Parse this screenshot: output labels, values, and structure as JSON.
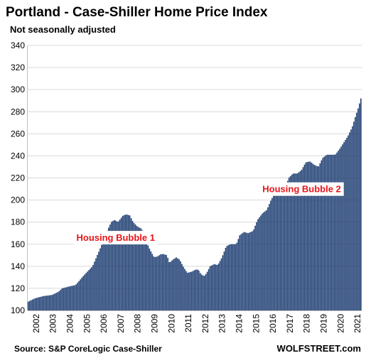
{
  "chart_data": {
    "type": "bar",
    "title": "Portland - Case-Shiller Home Price Index",
    "subtitle": "Not seasonally adjusted",
    "ylim": [
      100,
      340
    ],
    "yticks": [
      100,
      120,
      140,
      160,
      180,
      200,
      220,
      240,
      260,
      280,
      300,
      320,
      340
    ],
    "xlim": [
      2002.0,
      2021.6667
    ],
    "xticks": [
      "2002",
      "2003",
      "2004",
      "2005",
      "2006",
      "2007",
      "2008",
      "2009",
      "2010",
      "2011",
      "2012",
      "2013",
      "2014",
      "2015",
      "2016",
      "2017",
      "2018",
      "2019",
      "2020",
      "2021"
    ],
    "grid": "horizontal",
    "bar_color": "#1f3f73",
    "frequency": "monthly",
    "series_knots": [
      [
        2002.0,
        108
      ],
      [
        2002.4,
        111
      ],
      [
        2002.9,
        113
      ],
      [
        2003.4,
        114
      ],
      [
        2003.8,
        117
      ],
      [
        2004.0,
        120
      ],
      [
        2004.5,
        122
      ],
      [
        2004.8,
        123
      ],
      [
        2005.3,
        132
      ],
      [
        2005.8,
        140
      ],
      [
        2006.3,
        158
      ],
      [
        2006.6,
        170
      ],
      [
        2006.9,
        180
      ],
      [
        2007.1,
        182
      ],
      [
        2007.3,
        180
      ],
      [
        2007.6,
        186
      ],
      [
        2007.8,
        187
      ],
      [
        2008.0,
        186
      ],
      [
        2008.2,
        180
      ],
      [
        2008.45,
        176
      ],
      [
        2008.7,
        174
      ],
      [
        2008.9,
        168
      ],
      [
        2009.1,
        158
      ],
      [
        2009.3,
        152
      ],
      [
        2009.45,
        148
      ],
      [
        2009.65,
        149
      ],
      [
        2009.85,
        151
      ],
      [
        2010.0,
        151
      ],
      [
        2010.2,
        150
      ],
      [
        2010.35,
        143
      ],
      [
        2010.55,
        146
      ],
      [
        2010.75,
        148
      ],
      [
        2010.95,
        146
      ],
      [
        2011.15,
        140
      ],
      [
        2011.4,
        134
      ],
      [
        2011.65,
        135
      ],
      [
        2011.9,
        137
      ],
      [
        2012.05,
        137
      ],
      [
        2012.2,
        133
      ],
      [
        2012.4,
        131
      ],
      [
        2012.55,
        134
      ],
      [
        2012.75,
        140
      ],
      [
        2013.0,
        142
      ],
      [
        2013.2,
        141
      ],
      [
        2013.45,
        148
      ],
      [
        2013.7,
        158
      ],
      [
        2013.95,
        160
      ],
      [
        2014.3,
        160
      ],
      [
        2014.5,
        168
      ],
      [
        2014.75,
        171
      ],
      [
        2015.0,
        170
      ],
      [
        2015.3,
        172
      ],
      [
        2015.55,
        182
      ],
      [
        2015.85,
        188
      ],
      [
        2016.1,
        191
      ],
      [
        2016.35,
        200
      ],
      [
        2016.65,
        208
      ],
      [
        2016.95,
        210
      ],
      [
        2017.15,
        210
      ],
      [
        2017.4,
        220
      ],
      [
        2017.65,
        224
      ],
      [
        2017.9,
        224
      ],
      [
        2018.15,
        227
      ],
      [
        2018.4,
        234
      ],
      [
        2018.65,
        235
      ],
      [
        2018.9,
        232
      ],
      [
        2019.15,
        230
      ],
      [
        2019.4,
        238
      ],
      [
        2019.65,
        241
      ],
      [
        2019.9,
        241
      ],
      [
        2020.15,
        241
      ],
      [
        2020.4,
        246
      ],
      [
        2020.65,
        252
      ],
      [
        2020.9,
        258
      ],
      [
        2021.15,
        266
      ],
      [
        2021.35,
        276
      ],
      [
        2021.5,
        283
      ],
      [
        2021.6667,
        292
      ]
    ],
    "annotations": [
      {
        "text": "Housing Bubble 1",
        "x": 2007.2,
        "y": 163,
        "anchor": "middle"
      },
      {
        "text": "Housing Bubble 2",
        "x": 2018.2,
        "y": 207,
        "anchor": "middle"
      }
    ],
    "source": "Source: S&P CoreLogic Case-Shiller",
    "brand": "WOLFSTREET.com"
  }
}
